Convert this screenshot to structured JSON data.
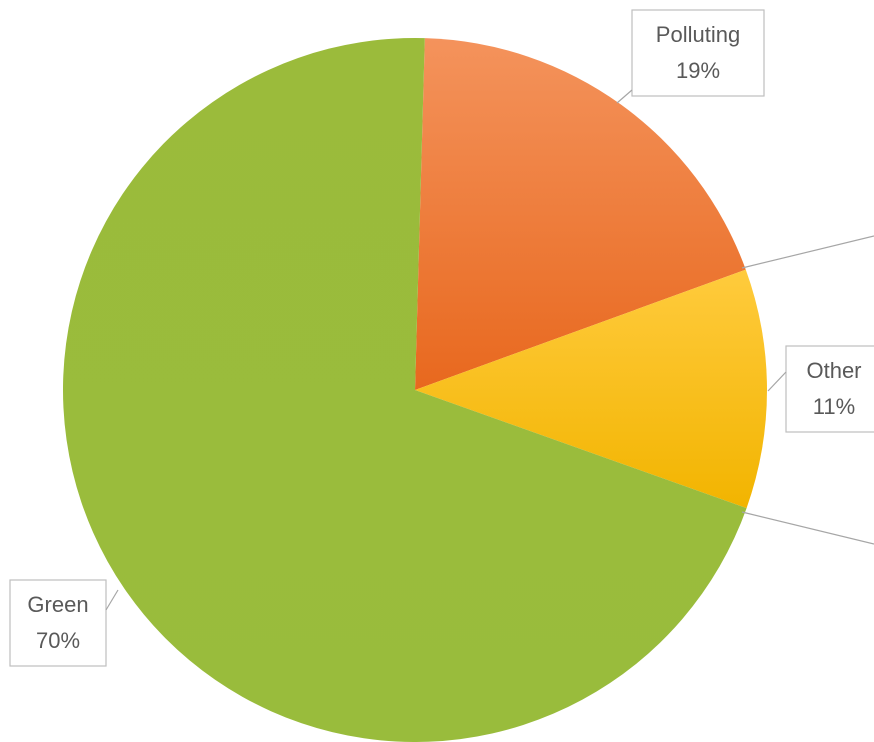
{
  "chart_data": {
    "type": "pie",
    "title": "",
    "slices": [
      {
        "label": "Polluting",
        "value": 19,
        "percent_label": "19%",
        "color": "#ED7D31"
      },
      {
        "label": "Other",
        "value": 11,
        "percent_label": "11%",
        "color": "#FFC000"
      },
      {
        "label": "Green",
        "value": 70,
        "percent_label": "70%",
        "color": "#9BBB3B"
      }
    ],
    "start": "top",
    "direction": "clockwise",
    "legend": "none",
    "data_labels": "callouts"
  }
}
